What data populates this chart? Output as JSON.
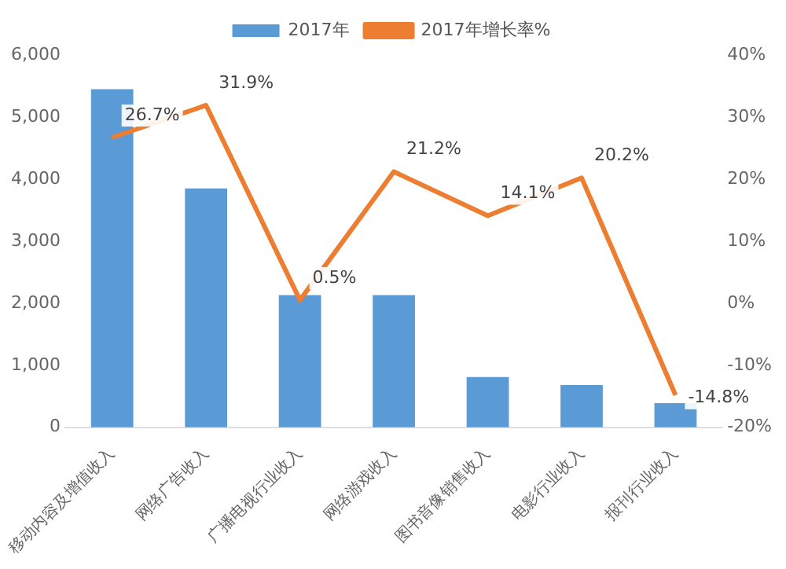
{
  "chart_data": {
    "type": "bar",
    "categories": [
      "移动内容及增值收入",
      "网络广告收入",
      "广播电视行业收入",
      "网络游戏收入",
      "图书音像销售收入",
      "电影行业收入",
      "报刊行业收入"
    ],
    "series": [
      {
        "name": "2017年",
        "color": "#5b9bd5",
        "values": [
          5450,
          3850,
          2130,
          2130,
          810,
          680,
          390
        ]
      },
      {
        "name": "2017年增长率%",
        "type": "line",
        "axis": "y2",
        "color": "#ed7d31",
        "values": [
          26.7,
          31.9,
          0.5,
          21.2,
          14.1,
          20.2,
          -14.8
        ],
        "value_labels": [
          "26.7%",
          "31.9%",
          "0.5%",
          "21.2%",
          "14.1%",
          "20.2%",
          "-14.8%"
        ]
      }
    ],
    "ylim": [
      0,
      6000
    ],
    "yticks": [
      0,
      {
        "value": 1000,
        "label": "1,000"
      },
      {
        "value": 2000,
        "label": "2,000"
      },
      {
        "value": 3000,
        "label": "3,000"
      },
      {
        "value": 4000,
        "label": "4,000"
      },
      {
        "value": 5000,
        "label": "5,000"
      },
      {
        "value": 6000,
        "label": "6,000"
      }
    ],
    "y2lim": [
      -20,
      40
    ],
    "y2ticks": [
      {
        "value": -20,
        "label": "-20%"
      },
      {
        "value": -10,
        "label": "-10%"
      },
      {
        "value": 0,
        "label": "0%"
      },
      {
        "value": 10,
        "label": "10%"
      },
      {
        "value": 20,
        "label": "20%"
      },
      {
        "value": 30,
        "label": "30%"
      },
      {
        "value": 40,
        "label": "40%"
      }
    ],
    "legend": "top",
    "grid": false,
    "marker": "none"
  }
}
